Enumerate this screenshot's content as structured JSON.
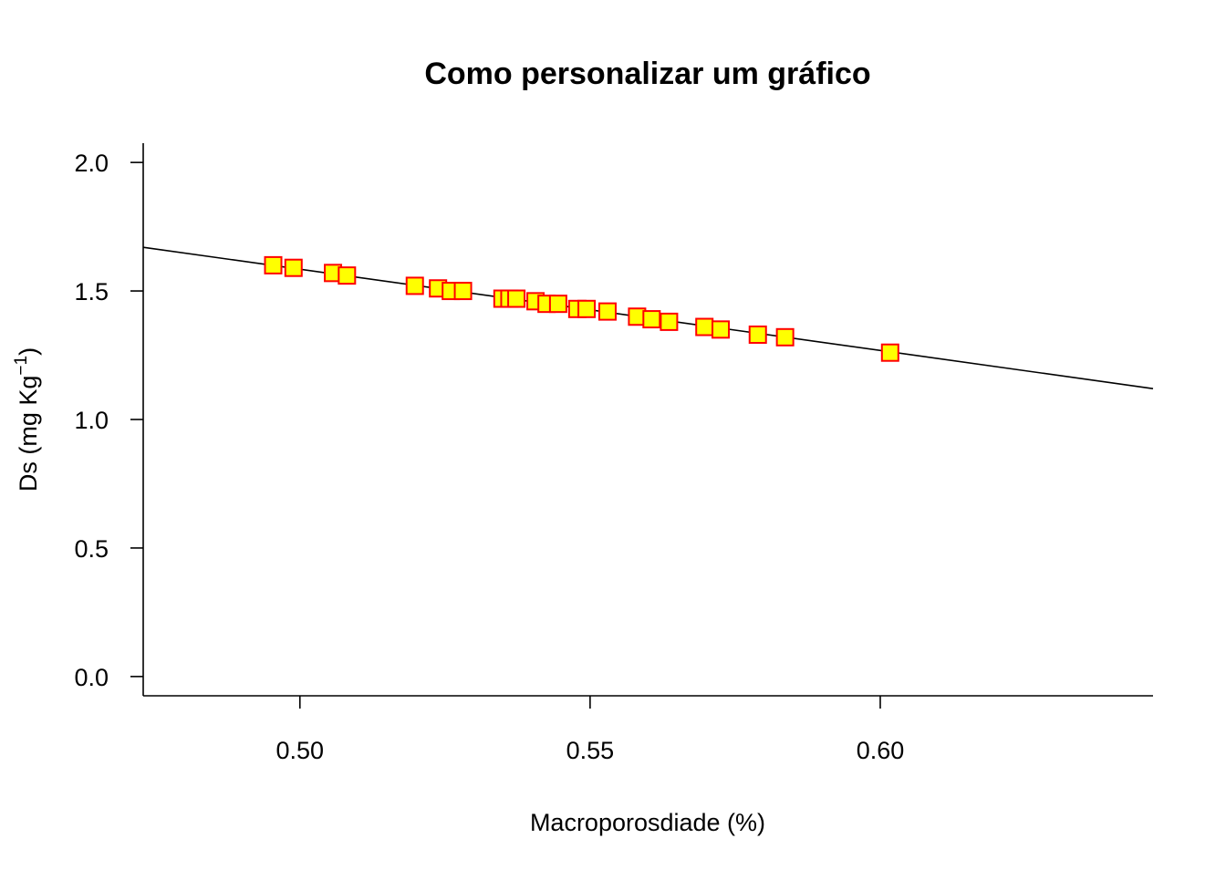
{
  "chart_data": {
    "type": "scatter",
    "title": "Como personalizar um gráfico",
    "xlabel": "Macroporosdiade (%)",
    "ylabel": {
      "main": "Ds (mg Kg",
      "superscript": "−1",
      "close": ")"
    },
    "xlim": [
      0.473,
      0.647
    ],
    "ylim": [
      -0.075,
      2.075
    ],
    "x_ticks": [
      {
        "value": 0.5,
        "label": "0.50"
      },
      {
        "value": 0.55,
        "label": "0.55"
      },
      {
        "value": 0.6,
        "label": "0.60"
      }
    ],
    "y_ticks": [
      {
        "value": 0.0,
        "label": "0.0"
      },
      {
        "value": 0.5,
        "label": "0.5"
      },
      {
        "value": 1.0,
        "label": "1.0"
      },
      {
        "value": 1.5,
        "label": "1.5"
      },
      {
        "value": 2.0,
        "label": "2.0"
      }
    ],
    "grid": false,
    "marker": {
      "shape": "square",
      "fill": "#FFFF00",
      "stroke": "#FF0000"
    },
    "line_color": "#000000",
    "fit_line": {
      "x": [
        0.473,
        0.647
      ],
      "y": [
        1.67,
        1.12
      ]
    },
    "points": [
      {
        "x": 0.4954,
        "y": 1.6
      },
      {
        "x": 0.4989,
        "y": 1.59
      },
      {
        "x": 0.5057,
        "y": 1.57
      },
      {
        "x": 0.5081,
        "y": 1.56
      },
      {
        "x": 0.5198,
        "y": 1.52
      },
      {
        "x": 0.5238,
        "y": 1.51
      },
      {
        "x": 0.526,
        "y": 1.5
      },
      {
        "x": 0.5281,
        "y": 1.5
      },
      {
        "x": 0.5349,
        "y": 1.47
      },
      {
        "x": 0.5361,
        "y": 1.47
      },
      {
        "x": 0.5373,
        "y": 1.47
      },
      {
        "x": 0.5406,
        "y": 1.46
      },
      {
        "x": 0.5425,
        "y": 1.45
      },
      {
        "x": 0.5445,
        "y": 1.45
      },
      {
        "x": 0.5478,
        "y": 1.43
      },
      {
        "x": 0.5494,
        "y": 1.43
      },
      {
        "x": 0.553,
        "y": 1.42
      },
      {
        "x": 0.5581,
        "y": 1.4
      },
      {
        "x": 0.5606,
        "y": 1.39
      },
      {
        "x": 0.5636,
        "y": 1.38
      },
      {
        "x": 0.5697,
        "y": 1.36
      },
      {
        "x": 0.5725,
        "y": 1.35
      },
      {
        "x": 0.5789,
        "y": 1.33
      },
      {
        "x": 0.5836,
        "y": 1.32
      },
      {
        "x": 0.6017,
        "y": 1.26
      }
    ]
  }
}
